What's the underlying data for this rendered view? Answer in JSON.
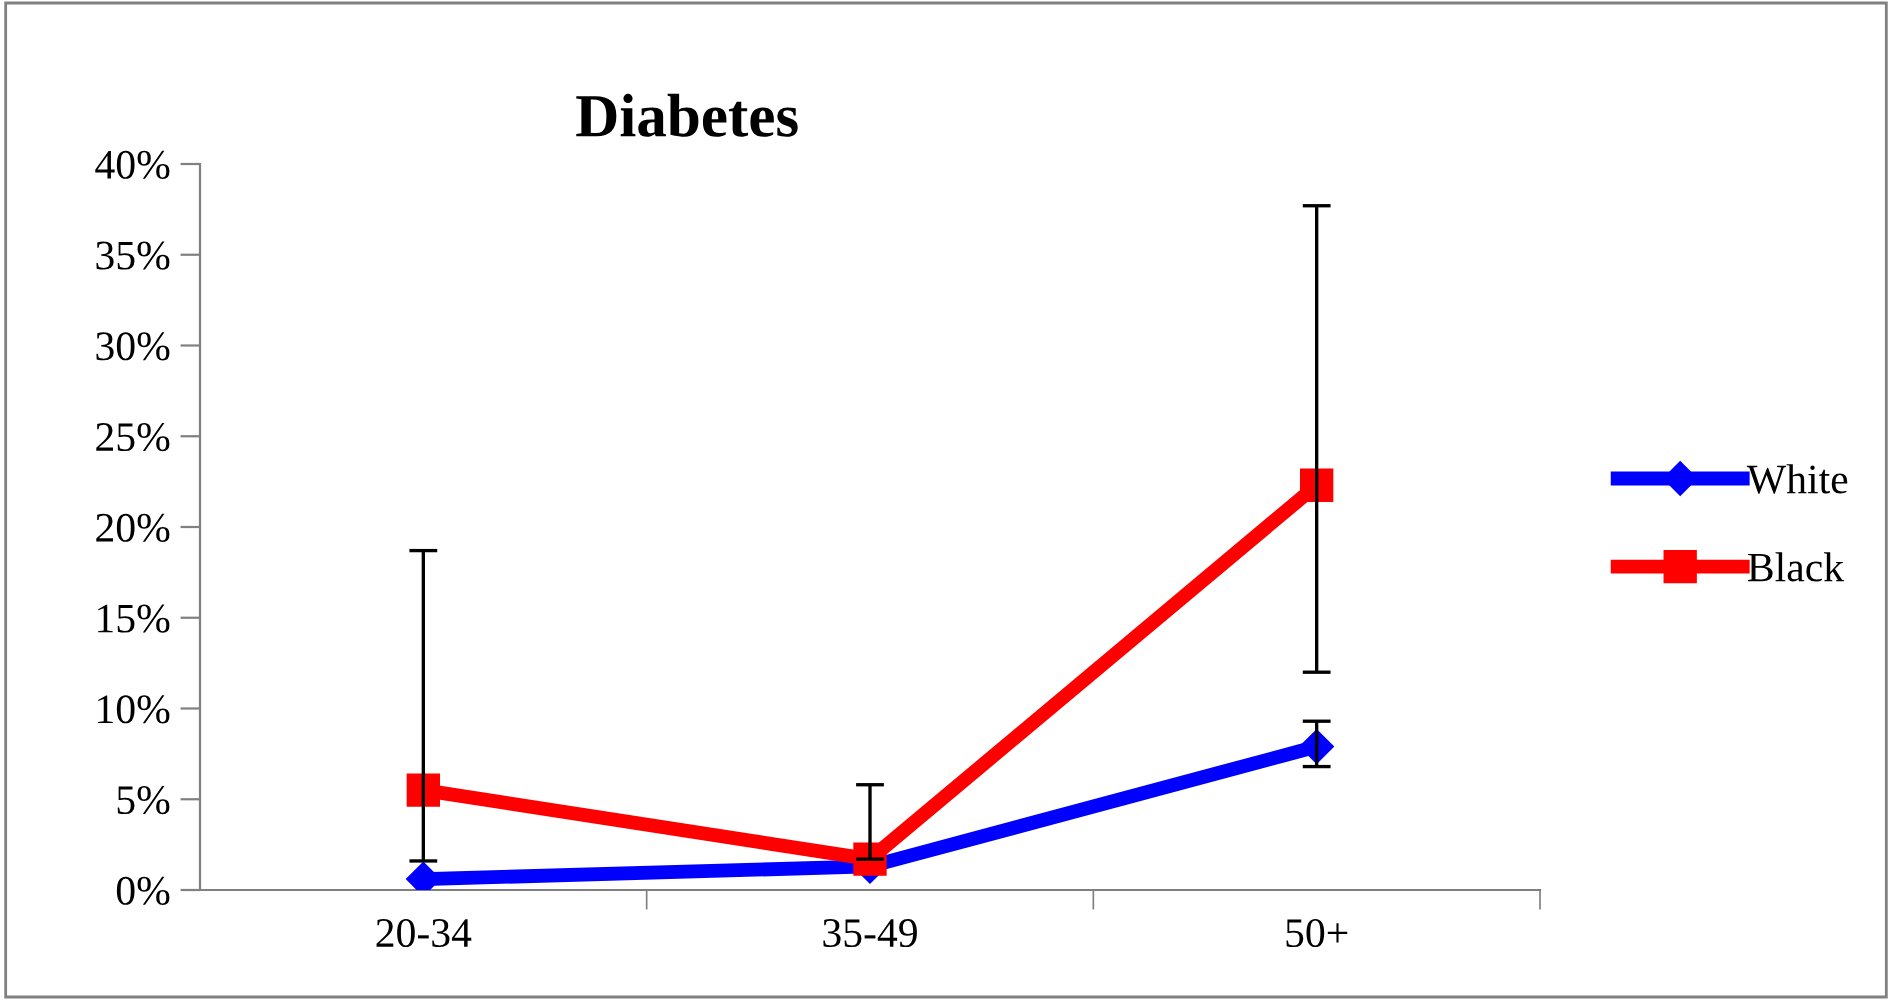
{
  "chart_data": {
    "type": "line",
    "title": "Diabetes",
    "categories": [
      "20-34",
      "35-49",
      "50+"
    ],
    "series": [
      {
        "name": "White",
        "color": "#0000ff",
        "marker": "diamond",
        "values": [
          0.6,
          1.3,
          7.9
        ],
        "errors": [
          null,
          null,
          [
            6.8,
            9.3
          ]
        ]
      },
      {
        "name": "Black",
        "color": "#ff0000",
        "marker": "square",
        "values": [
          5.5,
          1.7,
          22.3
        ],
        "errors": [
          [
            1.6,
            18.7
          ],
          [
            1.7,
            5.8
          ],
          [
            12.0,
            37.7
          ]
        ]
      }
    ],
    "ylim": [
      0,
      40
    ],
    "yticks": [
      {
        "value": 0,
        "label": "0%"
      },
      {
        "value": 5,
        "label": "5%"
      },
      {
        "value": 10,
        "label": "10%"
      },
      {
        "value": 15,
        "label": "15%"
      },
      {
        "value": 20,
        "label": "20%"
      },
      {
        "value": 25,
        "label": "25%"
      },
      {
        "value": 30,
        "label": "30%"
      },
      {
        "value": 35,
        "label": "35%"
      },
      {
        "value": 40,
        "label": "40%"
      }
    ],
    "grid": false,
    "legend": "right",
    "line_style": "solid"
  }
}
